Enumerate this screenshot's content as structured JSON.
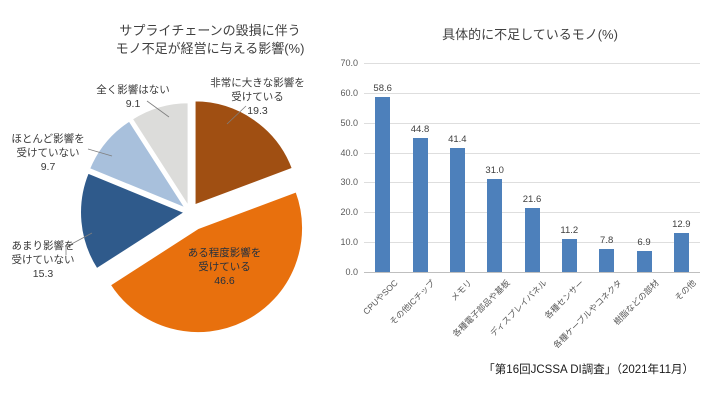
{
  "page": {
    "background": "#ffffff",
    "source_note": "「第16回JCSSA DI調査」（2021年11月）"
  },
  "chart_data": [
    {
      "type": "pie",
      "title": "サプライチェーンの毀損に伴う\nモノ不足が経営に与える影響(%)",
      "unit": "%",
      "direction": "clockwise",
      "start_angle_deg": 0,
      "exploded_slice": "ある程度影響を受けている",
      "slices": [
        {
          "label": "非常に大きな影響を\n受けている",
          "value": 19.3,
          "color": "#A04F12"
        },
        {
          "label": "ある程度影響を\n受けている",
          "value": 46.6,
          "color": "#E8700D"
        },
        {
          "label": "あまり影響を\n受けていない",
          "value": 15.3,
          "color": "#2F5A8B"
        },
        {
          "label": "ほとんど影響を\n受けていない",
          "value": 9.7,
          "color": "#A8C0DC"
        },
        {
          "label": "全く影響はない",
          "value": 9.1,
          "color": "#DCDCDA"
        }
      ]
    },
    {
      "type": "bar",
      "title": "具体的に不足しているモノ(%)",
      "categories": [
        "CPUやSOC",
        "その他ICチップ",
        "メモリ",
        "各種電子部品や基板",
        "ディスプレイパネル",
        "各種センサー",
        "各種ケーブルやコネクタ",
        "樹脂などの部材",
        "その他"
      ],
      "values": [
        58.6,
        44.8,
        41.4,
        31.0,
        21.6,
        11.2,
        7.8,
        6.9,
        12.9
      ],
      "ylim": [
        0,
        70
      ],
      "ytick_step": 10,
      "bar_color": "#4D80BB",
      "grid": true,
      "legend": "none",
      "value_labels": true
    }
  ]
}
